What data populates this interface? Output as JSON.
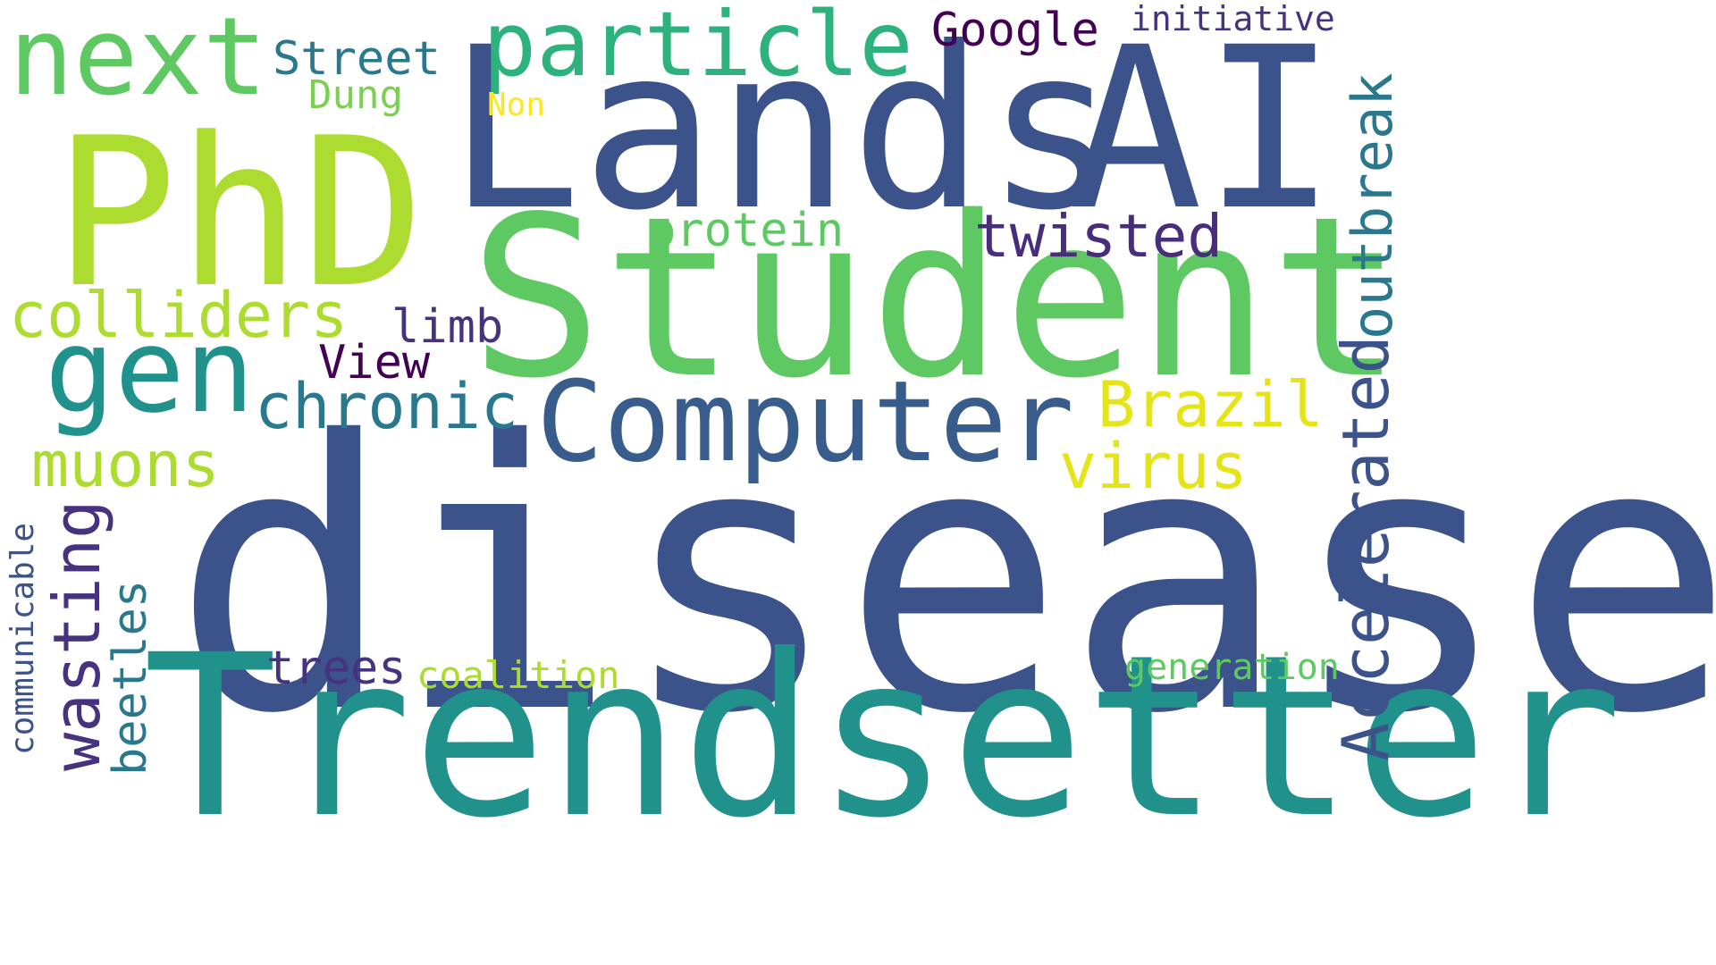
{
  "words": {
    "disease": "disease",
    "trendsetter": "Trendsetter",
    "student": "Student",
    "lands": "Lands",
    "ai": "AI",
    "phd": "PhD",
    "computer": "Computer",
    "next": "next",
    "gen": "gen",
    "particle": "particle",
    "colliders": "colliders",
    "chronic": "chronic",
    "brazil": "Brazil",
    "virus": "virus",
    "muons": "muons",
    "wasting": "wasting",
    "beetles": "beetles",
    "communicable": "communicable",
    "trees": "trees",
    "coalition": "coalition",
    "generation": "generation",
    "accelerated": "Accelerated",
    "outbreak": "outbreak",
    "twisted": "twisted",
    "protein": "protein",
    "limb": "limb",
    "view": "View",
    "google": "Google",
    "initiative": "initiative",
    "street": "Street",
    "dung": "Dung",
    "non": "Non"
  },
  "colors": {
    "dark_navy": "#3b528b",
    "navy": "#385d8c",
    "purple": "#46327e",
    "dark_purple": "#440154",
    "indigo": "#472d7b",
    "teal": "#21918c",
    "teal_dark": "#2a788e",
    "green_teal": "#2db27d",
    "green": "#5ec962",
    "light_green": "#7ad151",
    "lime": "#addc30",
    "yellow": "#fde725",
    "yellow2": "#e5e419"
  }
}
